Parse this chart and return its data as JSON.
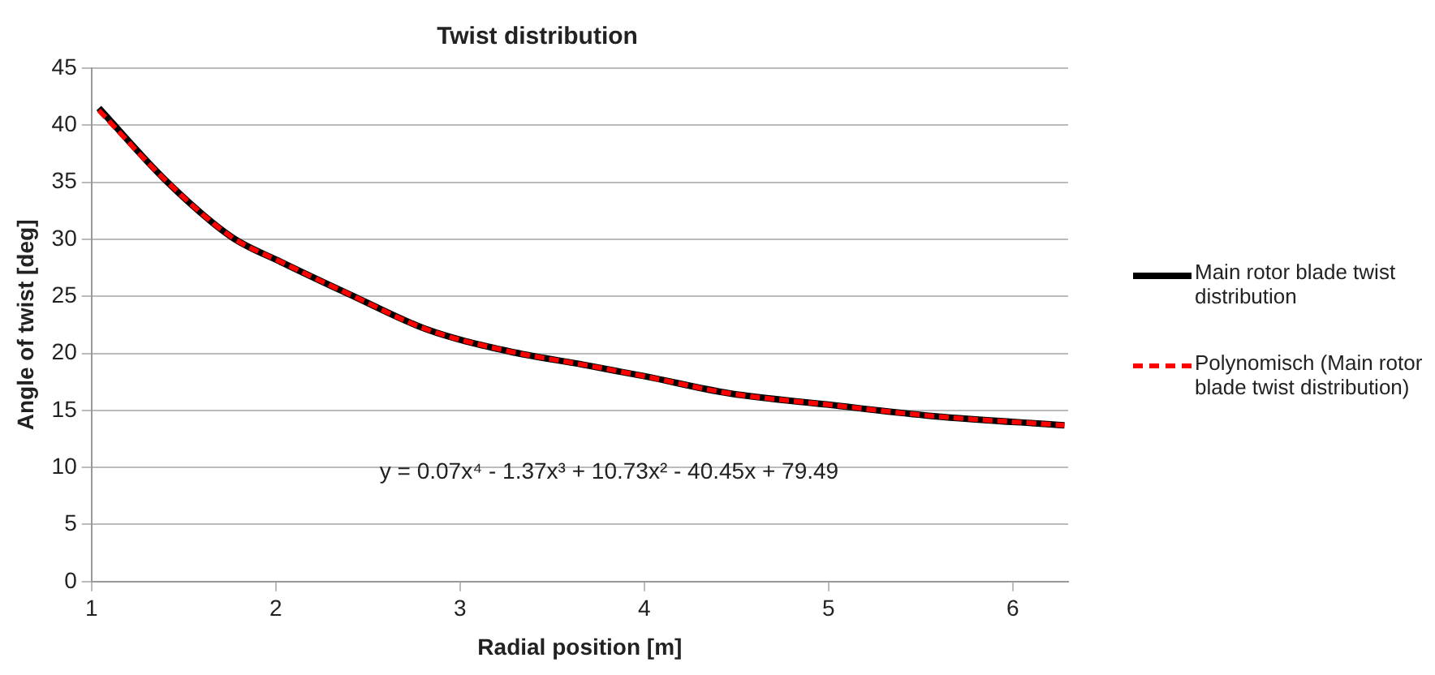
{
  "chart_data": {
    "type": "line",
    "title": "Twist distribution",
    "xlabel": "Radial position [m]",
    "ylabel": "Angle of twist [deg]",
    "xlim": [
      1,
      6.3
    ],
    "xticks": [
      1,
      2,
      3,
      4,
      5,
      6
    ],
    "ylim": [
      0,
      45
    ],
    "yticks": [
      0,
      5,
      10,
      15,
      20,
      25,
      30,
      35,
      40,
      45
    ],
    "grid": "y",
    "legend": "right",
    "marker": "none",
    "annotations": [
      "y = 0.07x⁴ - 1.37x³ + 10.73x² - 40.45x + 79.49"
    ],
    "series": [
      {
        "name": "Main rotor blade twist distribution",
        "color": "#000000",
        "line_style": "solid",
        "x": [
          1.04,
          1.4,
          1.76,
          2.03,
          2.41,
          2.82,
          3.26,
          3.67,
          4.0,
          4.46,
          5.0,
          5.57,
          6.28
        ],
        "values": [
          41.5,
          35.2,
          30.2,
          28.0,
          25.1,
          22.1,
          20.2,
          19.0,
          18.0,
          16.5,
          15.5,
          14.5,
          13.7
        ]
      },
      {
        "name": "Polynomisch (Main rotor blade twist distribution)",
        "color": "#ff0000",
        "line_style": "dashed",
        "x": [
          1.04,
          1.4,
          1.76,
          2.03,
          2.41,
          2.82,
          3.26,
          3.67,
          4.0,
          4.46,
          5.0,
          5.57,
          6.28
        ],
        "values": [
          41.3,
          35.2,
          30.2,
          28.0,
          25.1,
          22.1,
          20.2,
          19.0,
          18.0,
          16.5,
          15.5,
          14.5,
          13.7
        ]
      }
    ]
  }
}
